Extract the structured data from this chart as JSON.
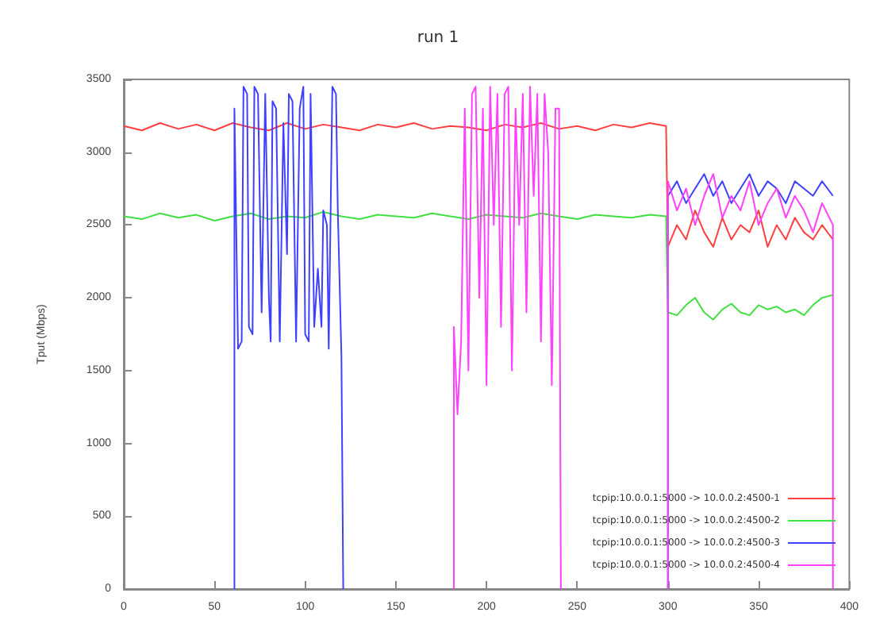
{
  "chart_data": {
    "type": "line",
    "title": "run 1",
    "ylabel": "Tput (Mbps)",
    "xlim": [
      0,
      400
    ],
    "xticks": [
      0,
      50,
      100,
      150,
      200,
      250,
      300,
      350,
      400
    ],
    "ylim": [
      0,
      3500
    ],
    "yticks": [
      0,
      500,
      1000,
      1500,
      2000,
      2500,
      3000,
      3500
    ],
    "grid": false,
    "legend": "bottom right",
    "marker": "none",
    "line_style": "solid",
    "series": [
      {
        "name": "tcpip:10.0.0.1:5000 -> 10.0.0.2:4500-1",
        "color": "#ff4040",
        "x": [
          0,
          10,
          20,
          30,
          40,
          50,
          60,
          70,
          80,
          90,
          100,
          110,
          120,
          130,
          140,
          150,
          160,
          170,
          180,
          190,
          200,
          210,
          220,
          230,
          240,
          250,
          260,
          270,
          280,
          290,
          299,
          300,
          305,
          310,
          315,
          320,
          325,
          330,
          335,
          340,
          345,
          350,
          355,
          360,
          365,
          370,
          375,
          380,
          385,
          391
        ],
        "values": [
          3180,
          3150,
          3200,
          3160,
          3190,
          3150,
          3200,
          3170,
          3150,
          3200,
          3160,
          3190,
          3170,
          3150,
          3190,
          3170,
          3200,
          3160,
          3180,
          3170,
          3150,
          3190,
          3170,
          3200,
          3160,
          3180,
          3150,
          3190,
          3170,
          3200,
          3180,
          2350,
          2500,
          2400,
          2600,
          2450,
          2350,
          2550,
          2400,
          2500,
          2450,
          2600,
          2350,
          2500,
          2400,
          2550,
          2450,
          2400,
          2500,
          2400
        ]
      },
      {
        "name": "tcpip:10.0.0.1:5000 -> 10.0.0.2:4500-2",
        "color": "#40e040",
        "x": [
          0,
          10,
          20,
          30,
          40,
          50,
          60,
          70,
          80,
          90,
          100,
          110,
          120,
          130,
          140,
          150,
          160,
          170,
          180,
          190,
          200,
          210,
          220,
          230,
          240,
          250,
          260,
          270,
          280,
          290,
          299,
          300,
          305,
          310,
          315,
          320,
          325,
          330,
          335,
          340,
          345,
          350,
          355,
          360,
          365,
          370,
          375,
          380,
          385,
          391
        ],
        "values": [
          2560,
          2540,
          2580,
          2550,
          2570,
          2530,
          2560,
          2580,
          2540,
          2560,
          2550,
          2590,
          2560,
          2540,
          2570,
          2560,
          2550,
          2580,
          2560,
          2540,
          2570,
          2560,
          2550,
          2580,
          2560,
          2540,
          2570,
          2560,
          2550,
          2570,
          2560,
          1900,
          1880,
          1950,
          2000,
          1900,
          1850,
          1920,
          1960,
          1900,
          1880,
          1950,
          1920,
          1940,
          1900,
          1920,
          1880,
          1950,
          2000,
          2020
        ]
      },
      {
        "name": "tcpip:10.0.0.1:5000 -> 10.0.0.2:4500-3",
        "color": "#4040ff",
        "x": [
          61,
          61,
          63,
          65,
          66,
          68,
          69,
          71,
          72,
          74,
          76,
          78,
          80,
          81,
          82,
          84,
          86,
          88,
          90,
          91,
          93,
          95,
          97,
          99,
          100,
          102,
          103,
          105,
          107,
          109,
          110,
          112,
          113,
          115,
          117,
          118,
          120,
          121,
          122,
          299,
          300,
          300,
          305,
          310,
          315,
          320,
          325,
          330,
          335,
          340,
          345,
          350,
          355,
          360,
          365,
          370,
          375,
          380,
          385,
          391
        ],
        "values": [
          0,
          3300,
          1650,
          1700,
          3450,
          3400,
          1800,
          1750,
          3450,
          3400,
          1900,
          3400,
          2000,
          1700,
          3350,
          3300,
          1700,
          3200,
          2300,
          3400,
          3350,
          1700,
          3300,
          3450,
          1750,
          1700,
          3400,
          1800,
          2200,
          1800,
          2600,
          2500,
          1650,
          3450,
          3400,
          2600,
          1600,
          0,
          null,
          null,
          0,
          2700,
          2800,
          2650,
          2750,
          2850,
          2700,
          2800,
          2650,
          2750,
          2850,
          2700,
          2800,
          2750,
          2650,
          2800,
          2750,
          2700,
          2800,
          2700
        ]
      },
      {
        "name": "tcpip:10.0.0.1:5000 -> 10.0.0.2:4500-4",
        "color": "#ff40ff",
        "x": [
          182,
          182,
          184,
          186,
          188,
          190,
          192,
          194,
          196,
          198,
          200,
          202,
          204,
          206,
          208,
          210,
          212,
          214,
          216,
          218,
          220,
          222,
          224,
          226,
          228,
          230,
          232,
          234,
          236,
          238,
          240,
          241,
          242,
          299,
          300,
          300,
          305,
          310,
          315,
          320,
          325,
          330,
          335,
          340,
          345,
          350,
          355,
          360,
          365,
          370,
          375,
          380,
          385,
          391,
          391
        ],
        "values": [
          0,
          1800,
          1200,
          1700,
          3300,
          1500,
          3400,
          3450,
          2000,
          3300,
          1400,
          3450,
          2500,
          3400,
          1800,
          3400,
          3450,
          1500,
          3300,
          2500,
          3400,
          1900,
          3450,
          2700,
          3400,
          1700,
          3400,
          3000,
          1400,
          3300,
          3300,
          0,
          null,
          null,
          0,
          2800,
          2600,
          2750,
          2500,
          2700,
          2850,
          2550,
          2700,
          2600,
          2800,
          2500,
          2650,
          2750,
          2550,
          2700,
          2600,
          2450,
          2650,
          2500,
          0
        ]
      }
    ]
  }
}
